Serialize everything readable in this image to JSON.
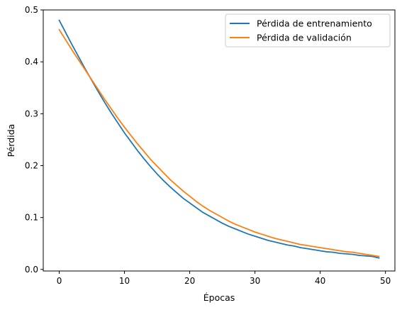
{
  "chart_data": {
    "type": "line",
    "title": "",
    "xlabel": "Épocas",
    "ylabel": "Pérdida",
    "xlim": [
      -2.45,
      51.45
    ],
    "ylim": [
      -0.003,
      0.5
    ],
    "xticks": [
      0,
      10,
      20,
      30,
      40,
      50
    ],
    "yticks": [
      0.0,
      0.1,
      0.2,
      0.3,
      0.4,
      0.5
    ],
    "grid": false,
    "legend_position": "top-right",
    "x": [
      0,
      1,
      2,
      3,
      4,
      5,
      6,
      7,
      8,
      9,
      10,
      11,
      12,
      13,
      14,
      15,
      16,
      17,
      18,
      19,
      20,
      21,
      22,
      23,
      24,
      25,
      26,
      27,
      28,
      29,
      30,
      31,
      32,
      33,
      34,
      35,
      36,
      37,
      38,
      39,
      40,
      41,
      42,
      43,
      44,
      45,
      46,
      47,
      48,
      49
    ],
    "series": [
      {
        "name": "Pérdida de entrenamiento",
        "color": "#1f77b4",
        "values": [
          0.48,
          0.456,
          0.432,
          0.409,
          0.386,
          0.364,
          0.342,
          0.321,
          0.301,
          0.282,
          0.263,
          0.246,
          0.229,
          0.213,
          0.198,
          0.184,
          0.171,
          0.159,
          0.148,
          0.137,
          0.128,
          0.119,
          0.11,
          0.103,
          0.096,
          0.089,
          0.083,
          0.078,
          0.073,
          0.068,
          0.064,
          0.06,
          0.056,
          0.053,
          0.05,
          0.047,
          0.045,
          0.042,
          0.04,
          0.038,
          0.036,
          0.034,
          0.033,
          0.031,
          0.03,
          0.029,
          0.027,
          0.026,
          0.025,
          0.022
        ]
      },
      {
        "name": "Pérdida de validación",
        "color": "#ff7f0e",
        "values": [
          0.462,
          0.442,
          0.422,
          0.403,
          0.384,
          0.365,
          0.346,
          0.327,
          0.309,
          0.291,
          0.274,
          0.258,
          0.242,
          0.227,
          0.212,
          0.199,
          0.186,
          0.173,
          0.162,
          0.151,
          0.141,
          0.131,
          0.122,
          0.114,
          0.107,
          0.1,
          0.093,
          0.087,
          0.082,
          0.077,
          0.072,
          0.068,
          0.064,
          0.06,
          0.057,
          0.054,
          0.051,
          0.048,
          0.046,
          0.044,
          0.042,
          0.04,
          0.038,
          0.036,
          0.034,
          0.033,
          0.031,
          0.029,
          0.027,
          0.025
        ]
      }
    ]
  }
}
